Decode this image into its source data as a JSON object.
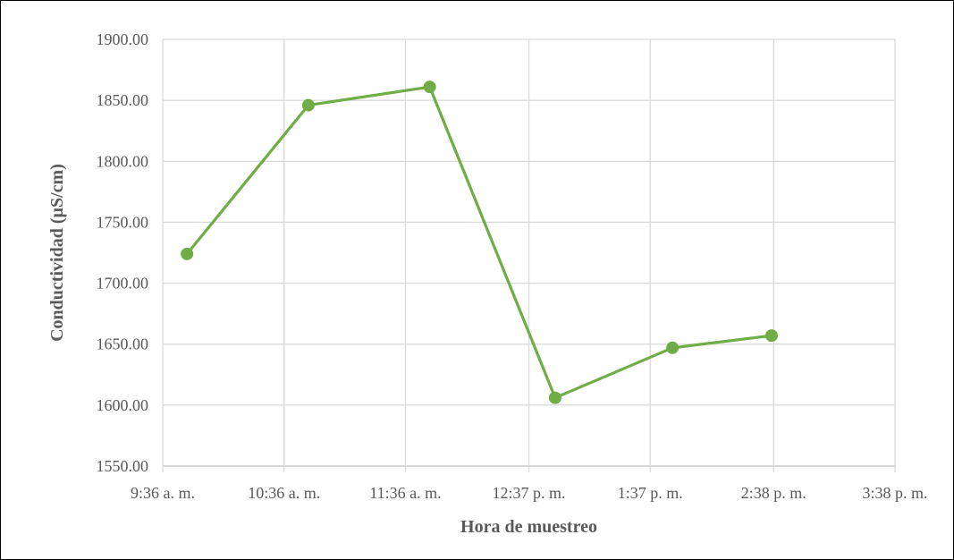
{
  "chart_data": {
    "type": "line",
    "title": "",
    "xlabel": "Hora de muestreo",
    "ylabel": "Conductividad (µS/cm)",
    "x_ticks": [
      "9:36 a. m.",
      "10:36 a. m.",
      "11:36 a. m.",
      "12:37 p. m.",
      "1:37 p. m.",
      "2:38 p. m.",
      "3:38 p. m."
    ],
    "y_ticks": [
      "1550.00",
      "1600.00",
      "1650.00",
      "1700.00",
      "1750.00",
      "1800.00",
      "1850.00",
      "1900.00"
    ],
    "ylim": [
      1550,
      1900
    ],
    "xlim": [
      "9:36 a. m.",
      "3:38 p. m."
    ],
    "grid": true,
    "legend": "none",
    "series": [
      {
        "x": [
          "9:48 a. m.",
          "10:48 a. m.",
          "11:48 a. m.",
          "12:50 p. m.",
          "1:48 p. m.",
          "2:37 p. m."
        ],
        "values": [
          1724,
          1846,
          1861,
          1606,
          1647,
          1657
        ],
        "color": "#70AD47"
      }
    ]
  }
}
